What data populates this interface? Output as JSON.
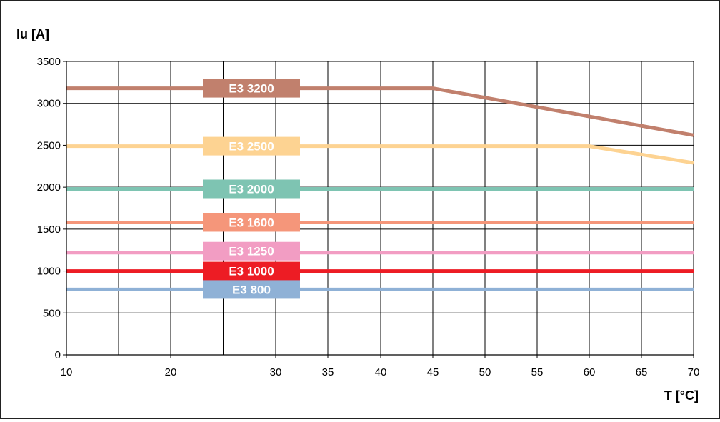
{
  "chart_data": {
    "type": "line",
    "ylabel": "Iu [A]",
    "xlabel": "T [°C]",
    "x_ticks": [
      "10",
      "20",
      "30",
      "35",
      "40",
      "45",
      "50",
      "55",
      "60",
      "65",
      "70"
    ],
    "y_ticks": [
      "0",
      "500",
      "1000",
      "1500",
      "2000",
      "2500",
      "3000",
      "3500"
    ],
    "ylim": [
      0,
      3500
    ],
    "grid": true,
    "series": [
      {
        "name": "E3 3200",
        "color": "#c1806d",
        "x": [
          10,
          45,
          70
        ],
        "values": [
          3180,
          3180,
          2620
        ]
      },
      {
        "name": "E3 2500",
        "color": "#fdd392",
        "x": [
          10,
          60,
          70
        ],
        "values": [
          2490,
          2490,
          2290
        ]
      },
      {
        "name": "E3 2000",
        "color": "#7ec4b2",
        "x": [
          10,
          70
        ],
        "values": [
          1980,
          1980
        ]
      },
      {
        "name": "E3 1600",
        "color": "#f5967a",
        "x": [
          10,
          70
        ],
        "values": [
          1580,
          1580
        ]
      },
      {
        "name": "E3 1250",
        "color": "#f29dc3",
        "x": [
          10,
          70
        ],
        "values": [
          1220,
          1220
        ]
      },
      {
        "name": "E3 1000",
        "color": "#ed1c24",
        "x": [
          10,
          70
        ],
        "values": [
          1000,
          1000
        ]
      },
      {
        "name": "E3 800",
        "color": "#8fb1d6",
        "x": [
          10,
          70
        ],
        "values": [
          780,
          780
        ]
      }
    ]
  }
}
